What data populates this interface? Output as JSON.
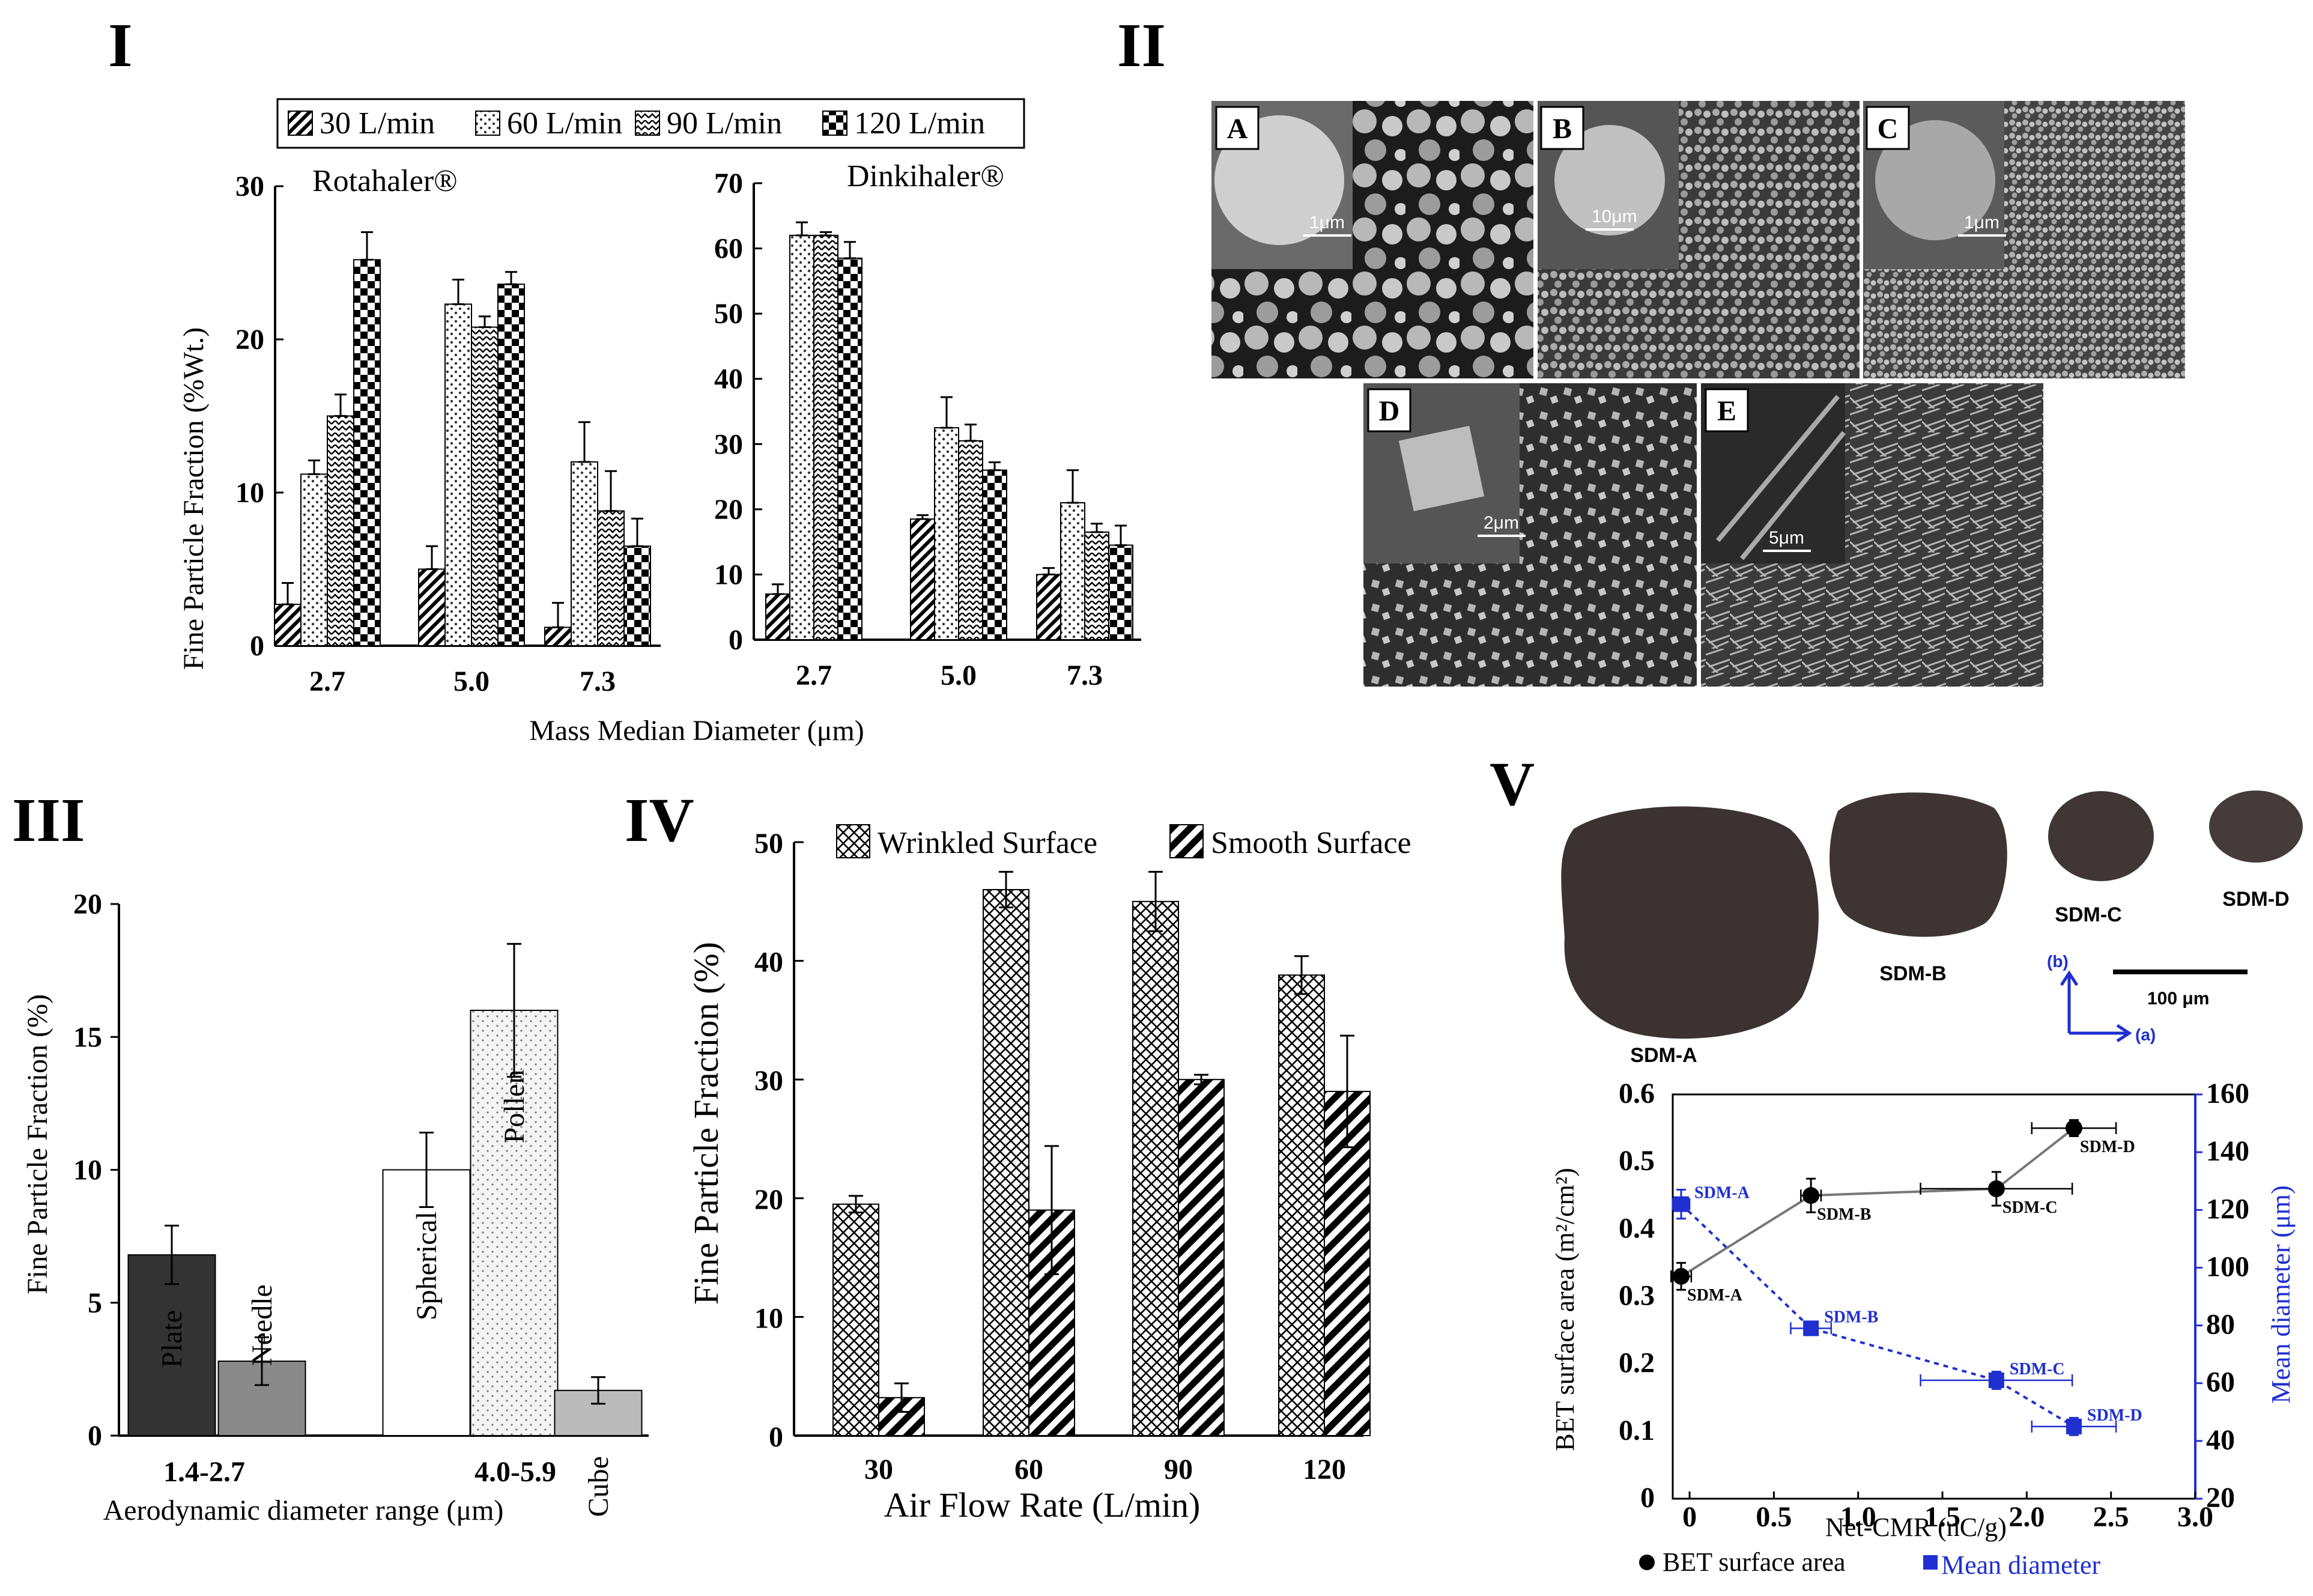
{
  "panel_labels": {
    "I": "I",
    "II": "II",
    "III": "III",
    "IV": "IV",
    "V": "V"
  },
  "chart_data": [
    {
      "panel": "I",
      "type": "bar",
      "subplots": [
        {
          "title": "Rotahaler®",
          "categories": [
            "2.7",
            "5.0",
            "7.3"
          ],
          "ylim": [
            0,
            30
          ],
          "yticks": [
            "0",
            "10",
            "20",
            "30"
          ],
          "series": [
            {
              "name": "30 L/min",
              "values": [
                2.7,
                5.0,
                1.2
              ],
              "errors": [
                1.4,
                1.5,
                1.6
              ]
            },
            {
              "name": "60 L/min",
              "values": [
                11.2,
                22.3,
                12.0
              ],
              "errors": [
                0.9,
                1.6,
                2.6
              ]
            },
            {
              "name": "90 L/min",
              "values": [
                15.0,
                20.8,
                8.8
              ],
              "errors": [
                1.4,
                0.7,
                2.6
              ]
            },
            {
              "name": "120 L/min",
              "values": [
                25.2,
                23.6,
                6.5
              ],
              "errors": [
                1.8,
                0.8,
                1.8
              ]
            }
          ]
        },
        {
          "title": "Dinkihaler®",
          "categories": [
            "2.7",
            "5.0",
            "7.3"
          ],
          "ylim": [
            0,
            70
          ],
          "yticks": [
            "0",
            "10",
            "20",
            "30",
            "40",
            "50",
            "60",
            "70"
          ],
          "series": [
            {
              "name": "30 L/min",
              "values": [
                7.0,
                18.5,
                10.0
              ],
              "errors": [
                1.5,
                0.6,
                1.0
              ]
            },
            {
              "name": "60 L/min",
              "values": [
                62.0,
                32.5,
                21.0
              ],
              "errors": [
                2.0,
                4.7,
                5.0
              ]
            },
            {
              "name": "90 L/min",
              "values": [
                62.0,
                30.5,
                16.5
              ],
              "errors": [
                0.5,
                2.5,
                1.3
              ]
            },
            {
              "name": "120 L/min",
              "values": [
                58.5,
                26.0,
                14.5
              ],
              "errors": [
                2.5,
                1.2,
                3.0
              ]
            }
          ]
        }
      ],
      "legend": [
        "30 L/min",
        "60 L/min",
        "90 L/min",
        "120 L/min"
      ],
      "ylabel": "Fine Particle Fraction (%Wt.)",
      "xlabel": "Mass Median Diameter (μm)"
    },
    {
      "panel": "III",
      "type": "bar",
      "groups": [
        "1.4-2.7",
        "4.0-5.9"
      ],
      "bars": [
        {
          "label": "Plate",
          "group": "1.4-2.7",
          "value": 6.8,
          "error": 1.1,
          "color": "#333333"
        },
        {
          "label": "Needle",
          "group": "1.4-2.7",
          "value": 2.8,
          "error": 0.9,
          "color": "#8a8a8a"
        },
        {
          "label": "Spherical",
          "group": "4.0-5.9",
          "value": 10.0,
          "error": 1.4,
          "color": "#ffffff"
        },
        {
          "label": "Pollen",
          "group": "4.0-5.9",
          "value": 16.0,
          "error": 2.5,
          "color": "#f2f2f2"
        },
        {
          "label": "Cube",
          "group": "4.0-5.9",
          "value": 1.7,
          "error": 0.5,
          "color": "#bbbbbb"
        }
      ],
      "ylim": [
        0,
        20
      ],
      "yticks": [
        "0",
        "5",
        "10",
        "15",
        "20"
      ],
      "ylabel": "Fine Particle Fraction (%)",
      "xlabel": "Aerodynamic diameter range (μm)"
    },
    {
      "panel": "IV",
      "type": "bar",
      "categories": [
        "30",
        "60",
        "90",
        "120"
      ],
      "series": [
        {
          "name": "Wrinkled Surface",
          "values": [
            19.5,
            46.0,
            45.0,
            38.8
          ],
          "errors": [
            0.7,
            1.5,
            2.5,
            1.6
          ]
        },
        {
          "name": "Smooth Surface",
          "values": [
            3.2,
            19.0,
            30.0,
            29.0
          ],
          "errors": [
            1.2,
            5.4,
            0.4,
            4.7
          ]
        }
      ],
      "ylim": [
        0,
        50
      ],
      "yticks": [
        "0",
        "10",
        "20",
        "30",
        "40",
        "50"
      ],
      "ylabel": "Fine Particle Fraction (%)",
      "xlabel": "Air Flow Rate (L/min)"
    },
    {
      "panel": "V",
      "type": "scatter",
      "xlabel": "Net-CMR (nC/g)",
      "ylabel_left": "BET surface area (m²/cm²)",
      "ylabel_right": "Mean diameter (μm)",
      "xlim": [
        -0.1,
        3.0
      ],
      "xticks": [
        "0",
        "0.5",
        "1.0",
        "1.5",
        "2.0",
        "2.5",
        "3.0"
      ],
      "ylim_left": [
        0.0,
        0.6
      ],
      "yticks_left": [
        "0",
        "0.1",
        "0.2",
        "0.3",
        "0.4",
        "0.5",
        "0.6"
      ],
      "ylim_right": [
        20,
        160
      ],
      "yticks_right": [
        "20",
        "40",
        "60",
        "80",
        "100",
        "120",
        "140",
        "160"
      ],
      "series": [
        {
          "name": "BET surface area",
          "axis": "left",
          "color": "#000000",
          "points": [
            {
              "label": "SDM-A",
              "x": -0.05,
              "y": 0.33,
              "xerr": 0.06,
              "yerr": 0.02
            },
            {
              "label": "SDM-B",
              "x": 0.72,
              "y": 0.45,
              "xerr": 0.06,
              "yerr": 0.025
            },
            {
              "label": "SDM-C",
              "x": 1.82,
              "y": 0.46,
              "xerr": 0.45,
              "yerr": 0.025
            },
            {
              "label": "SDM-D",
              "x": 2.28,
              "y": 0.55,
              "xerr": 0.25,
              "yerr": 0.012
            }
          ]
        },
        {
          "name": "Mean diameter",
          "axis": "right",
          "color": "#1f2fd0",
          "points": [
            {
              "label": "SDM-A",
              "x": -0.05,
              "y": 122,
              "xerr": 0.05,
              "yerr": 5
            },
            {
              "label": "SDM-B",
              "x": 0.72,
              "y": 79,
              "xerr": 0.12,
              "yerr": 2
            },
            {
              "label": "SDM-C",
              "x": 1.82,
              "y": 61,
              "xerr": 0.45,
              "yerr": 3
            },
            {
              "label": "SDM-D",
              "x": 2.28,
              "y": 45,
              "xerr": 0.25,
              "yerr": 3
            }
          ]
        }
      ]
    }
  ],
  "panel_II": {
    "images": [
      {
        "letter": "A",
        "scale": "1μm"
      },
      {
        "letter": "B",
        "scale": "10μm"
      },
      {
        "letter": "C",
        "scale": "1μm"
      },
      {
        "letter": "D",
        "scale": "2μm"
      },
      {
        "letter": "E",
        "scale": "5μm"
      }
    ]
  },
  "panel_V_photos": {
    "particles": [
      "SDM-A",
      "SDM-B",
      "SDM-C",
      "SDM-D"
    ],
    "scale_bar": "100 μm",
    "axis_b": "(b)",
    "axis_a": "(a)"
  }
}
